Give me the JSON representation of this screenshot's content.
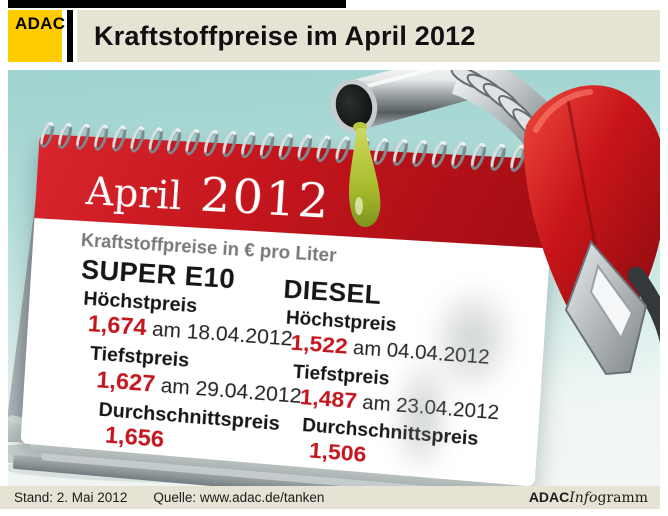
{
  "header": {
    "logo_text": "ADAC",
    "title": "Kraftstoffpreise im April 2012"
  },
  "calendar": {
    "month": "April",
    "year": "2012",
    "subtitle": "Kraftstoffpreise in € pro Liter",
    "columns": [
      {
        "fuel": "SUPER E10",
        "rows": [
          {
            "label": "Höchstpreis",
            "price": "1,674",
            "date": "am 18.04.2012"
          },
          {
            "label": "Tiefstpreis",
            "price": "1,627",
            "date": "am 29.04.2012"
          },
          {
            "label": "Durchschnittspreis",
            "price": "1,656",
            "date": ""
          }
        ]
      },
      {
        "fuel": "DIESEL",
        "rows": [
          {
            "label": "Höchstpreis",
            "price": "1,522",
            "date": "am 04.04.2012"
          },
          {
            "label": "Tiefstpreis",
            "price": "1,487",
            "date": "am 23.04.2012"
          },
          {
            "label": "Durchschnittspreis",
            "price": "1,506",
            "date": ""
          }
        ]
      }
    ]
  },
  "footer": {
    "status": "Stand: 2. Mai 2012",
    "source": "Quelle: www.adac.de/tanken",
    "brand": {
      "bold": "ADAC",
      "italic": "Info",
      "rest": "gramm"
    }
  },
  "colors": {
    "adac_yellow": "#ffcc00",
    "calendar_red": "#c4151d",
    "price_red": "#c4161d",
    "background_teal": "#a7d8d5",
    "band_beige": "#e6e2d4"
  },
  "chart_data": {
    "type": "table",
    "title": "Kraftstoffpreise im April 2012",
    "unit": "€ pro Liter",
    "columns": [
      "Kraftstoff",
      "Höchstpreis",
      "Höchstpreis Datum",
      "Tiefstpreis",
      "Tiefstpreis Datum",
      "Durchschnittspreis"
    ],
    "rows": [
      [
        "SUPER E10",
        1.674,
        "18.04.2012",
        1.627,
        "29.04.2012",
        1.656
      ],
      [
        "DIESEL",
        1.522,
        "04.04.2012",
        1.487,
        "23.04.2012",
        1.506
      ]
    ]
  }
}
